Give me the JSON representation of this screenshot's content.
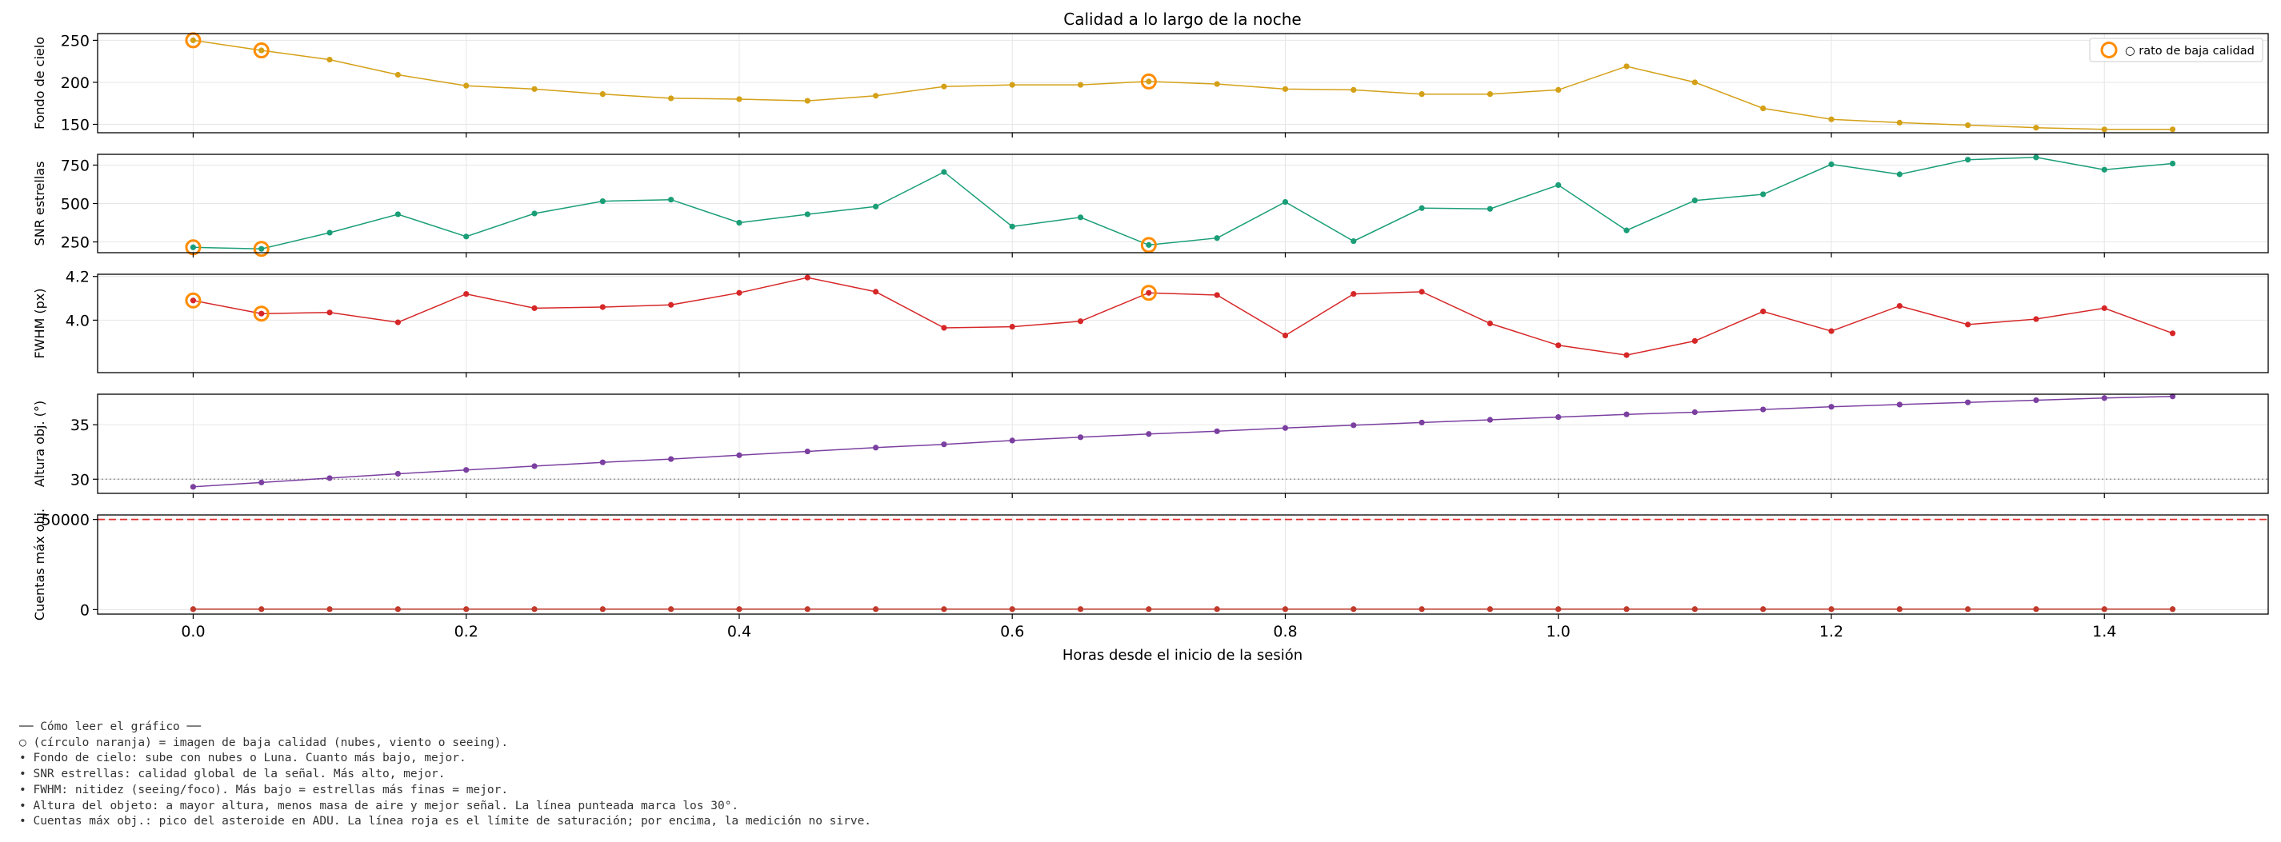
{
  "chart_data": {
    "type": "line",
    "title": "Calidad a lo largo de la noche",
    "xlabel": "Horas desde el inicio de la sesión",
    "xlim": [
      -0.07,
      1.52
    ],
    "x_ticks": [
      0.0,
      0.2,
      0.4,
      0.6,
      0.8,
      1.0,
      1.2,
      1.4
    ],
    "x_tick_labels": [
      "0.0",
      "0.2",
      "0.4",
      "0.6",
      "0.8",
      "1.0",
      "1.2",
      "1.4"
    ],
    "x": [
      0.0,
      0.05,
      0.1,
      0.15,
      0.2,
      0.25,
      0.3,
      0.35,
      0.4,
      0.45,
      0.5,
      0.55,
      0.6,
      0.65,
      0.7,
      0.75,
      0.8,
      0.85,
      0.9,
      0.95,
      1.0,
      1.05,
      1.1,
      1.15,
      1.2,
      1.25,
      1.3,
      1.35,
      1.4,
      1.45
    ],
    "grid": true,
    "legend": {
      "position": "top-right",
      "label": "○ rato de baja calidad"
    },
    "panels": [
      {
        "key": "fondo",
        "ylabel": "Fondo de cielo",
        "color": "#d4a017",
        "ylim": [
          140,
          258
        ],
        "y_ticks": [
          150,
          200,
          250
        ],
        "y_tick_labels": [
          "150",
          "200",
          "250"
        ],
        "values": [
          250,
          238,
          227,
          209,
          196,
          192,
          186,
          181,
          180,
          178,
          184,
          195,
          197,
          197,
          201,
          198,
          192,
          191,
          186,
          186,
          191,
          219,
          200,
          169,
          156,
          152,
          149,
          146,
          144,
          144
        ],
        "flagged_x": [
          0.0,
          0.05,
          0.7
        ]
      },
      {
        "key": "snr",
        "ylabel": "SNR estrellas",
        "color": "#1a9e77",
        "ylim": [
          180,
          820
        ],
        "y_ticks": [
          250,
          500,
          750
        ],
        "y_tick_labels": [
          "250",
          "500",
          "750"
        ],
        "values": [
          215,
          205,
          310,
          430,
          285,
          435,
          515,
          525,
          375,
          430,
          480,
          705,
          350,
          410,
          230,
          275,
          510,
          255,
          470,
          465,
          620,
          325,
          520,
          560,
          755,
          690,
          785,
          800,
          720,
          760
        ],
        "flagged_x": [
          0.0,
          0.05,
          0.7
        ]
      },
      {
        "key": "fwhm",
        "ylabel": "FWHM (px)",
        "color": "#d62728",
        "ylim": [
          3.76,
          4.21
        ],
        "y_ticks": [
          4.0,
          4.2
        ],
        "y_tick_labels": [
          "4.0",
          "4.2"
        ],
        "values": [
          4.09,
          4.03,
          4.035,
          3.99,
          4.12,
          4.055,
          4.06,
          4.07,
          4.125,
          4.195,
          4.13,
          3.965,
          3.97,
          3.995,
          4.125,
          4.115,
          3.93,
          4.12,
          4.13,
          3.985,
          3.885,
          3.84,
          3.905,
          4.04,
          3.95,
          4.065,
          3.98,
          4.005,
          4.055,
          3.94
        ],
        "flagged_x": [
          0.0,
          0.05,
          0.7
        ]
      },
      {
        "key": "altura",
        "ylabel": "Altura obj. (°)",
        "color": "#7b3fa0",
        "ylim": [
          28.7,
          37.8
        ],
        "y_ticks": [
          30,
          35
        ],
        "y_tick_labels": [
          "30",
          "35"
        ],
        "reference_line": {
          "value": 30,
          "style": "dotted",
          "color": "#999999"
        },
        "values": [
          29.3,
          29.7,
          30.1,
          30.5,
          30.85,
          31.2,
          31.55,
          31.85,
          32.2,
          32.55,
          32.9,
          33.2,
          33.55,
          33.85,
          34.15,
          34.4,
          34.7,
          34.95,
          35.2,
          35.45,
          35.7,
          35.95,
          36.15,
          36.4,
          36.65,
          36.85,
          37.05,
          37.25,
          37.45,
          37.6
        ],
        "flagged_x": []
      },
      {
        "key": "cuentas",
        "ylabel": "Cuentas máx obj.",
        "color": "#c0392b",
        "ylim": [
          -2500,
          52500
        ],
        "y_ticks": [
          0,
          50000
        ],
        "y_tick_labels": [
          "0",
          "50000"
        ],
        "reference_line": {
          "value": 50000,
          "style": "dashed",
          "color": "#e03030"
        },
        "values": [
          260,
          260,
          260,
          260,
          260,
          260,
          260,
          260,
          260,
          260,
          260,
          260,
          260,
          260,
          260,
          260,
          260,
          260,
          260,
          260,
          260,
          260,
          260,
          260,
          260,
          260,
          260,
          260,
          260,
          260
        ],
        "flagged_x": []
      }
    ]
  },
  "colors": {
    "flag_ring": "#ff8c00",
    "grid": "#e6e6e6",
    "axis": "#000000"
  },
  "notes": [
    "── Cómo leer el gráfico ──",
    "○ (círculo naranja) = imagen de baja calidad (nubes, viento o seeing).",
    "• Fondo de cielo: sube con nubes o Luna. Cuanto más bajo, mejor.",
    "• SNR estrellas: calidad global de la señal. Más alto, mejor.",
    "• FWHM: nitidez (seeing/foco). Más bajo = estrellas más finas = mejor.",
    "• Altura del objeto: a mayor altura, menos masa de aire y mejor señal. La línea punteada marca los 30°.",
    "• Cuentas máx obj.: pico del asteroide en ADU. La línea roja es el límite de saturación; por encima, la medición no sirve."
  ]
}
